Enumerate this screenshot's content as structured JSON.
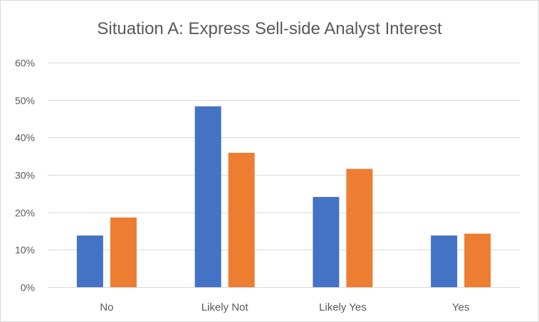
{
  "chart_data": {
    "type": "bar",
    "title": "Situation A: Express Sell-side Analyst Interest",
    "xlabel": "",
    "ylabel": "",
    "categories": [
      "No",
      "Likely Not",
      "Likely Yes",
      "Yes"
    ],
    "series": [
      {
        "values": [
          0.138,
          0.483,
          0.241,
          0.138
        ],
        "color": "#4472c4"
      },
      {
        "values": [
          0.186,
          0.359,
          0.316,
          0.143
        ],
        "color": "#ed7d31"
      }
    ],
    "ylim": [
      0,
      0.6
    ],
    "yticks": [
      0,
      0.1,
      0.2,
      0.3,
      0.4,
      0.5,
      0.6
    ],
    "ytick_labels": [
      "0%",
      "10%",
      "20%",
      "30%",
      "40%",
      "50%",
      "60%"
    ],
    "grid": true,
    "legend": "none"
  }
}
